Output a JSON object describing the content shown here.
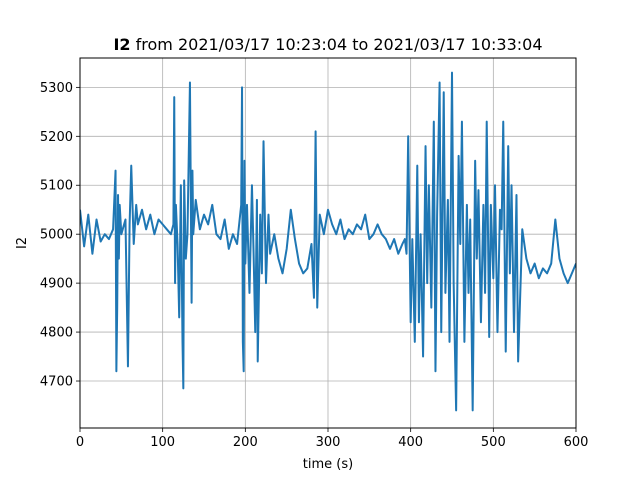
{
  "chart_data": {
    "type": "line",
    "title_bold": "I2",
    "title_rest": " from 2021/03/17 10:23:04 to 2021/03/17 10:33:04",
    "xlabel": "time (s)",
    "ylabel": "I2",
    "xlim": [
      0,
      600
    ],
    "ylim": [
      4604,
      5360
    ],
    "grid": true,
    "x_ticks": [
      0,
      100,
      200,
      300,
      400,
      500,
      600
    ],
    "y_ticks": [
      4700,
      4800,
      4900,
      5000,
      5100,
      5200,
      5300
    ],
    "line_color": "#1f77b4",
    "series": [
      {
        "x": [
          0,
          5,
          10,
          15,
          20,
          25,
          30,
          35,
          40,
          43,
          44,
          45,
          46,
          47,
          48,
          50,
          55,
          58,
          60,
          62,
          65,
          68,
          70,
          75,
          80,
          85,
          90,
          95,
          100,
          105,
          110,
          113,
          114,
          115,
          116,
          118,
          120,
          122,
          124,
          125,
          126,
          128,
          130,
          133,
          135,
          136,
          137,
          140,
          145,
          150,
          155,
          160,
          165,
          170,
          175,
          180,
          185,
          190,
          195,
          196,
          197,
          198,
          199,
          200,
          202,
          205,
          208,
          210,
          212,
          214,
          215,
          218,
          220,
          222,
          225,
          228,
          230,
          235,
          240,
          245,
          250,
          255,
          260,
          265,
          270,
          275,
          280,
          283,
          285,
          287,
          290,
          295,
          300,
          305,
          310,
          315,
          320,
          325,
          330,
          335,
          340,
          345,
          350,
          355,
          360,
          365,
          370,
          375,
          380,
          385,
          390,
          393,
          395,
          397,
          400,
          402,
          405,
          408,
          410,
          412,
          415,
          418,
          420,
          422,
          425,
          428,
          430,
          432,
          435,
          437,
          440,
          442,
          445,
          447,
          450,
          452,
          455,
          458,
          460,
          462,
          465,
          468,
          470,
          472,
          475,
          478,
          480,
          482,
          485,
          488,
          490,
          492,
          495,
          497,
          500,
          502,
          505,
          508,
          510,
          512,
          515,
          518,
          520,
          522,
          525,
          528,
          530,
          535,
          540,
          545,
          550,
          555,
          560,
          565,
          570,
          575,
          580,
          585,
          590,
          595,
          600
        ],
        "y": [
          5050,
          4975,
          5040,
          4960,
          5030,
          4985,
          5000,
          4990,
          5010,
          5130,
          4720,
          4850,
          5080,
          4950,
          5060,
          5000,
          5030,
          4730,
          5020,
          5140,
          4980,
          5060,
          5020,
          5050,
          5010,
          5040,
          5000,
          5030,
          5020,
          5010,
          5000,
          5020,
          5280,
          4900,
          5060,
          4980,
          4830,
          5100,
          4780,
          4685,
          5110,
          4950,
          5000,
          5310,
          4860,
          5130,
          5000,
          5070,
          5010,
          5040,
          5020,
          5060,
          5000,
          4990,
          5030,
          4970,
          5000,
          4980,
          5060,
          5300,
          4780,
          4720,
          5150,
          4940,
          5060,
          4880,
          5100,
          4960,
          4800,
          5070,
          4740,
          5040,
          4920,
          5190,
          4900,
          5040,
          4960,
          5000,
          4950,
          4920,
          4970,
          5050,
          4990,
          4940,
          4920,
          4930,
          4980,
          4870,
          5210,
          4850,
          5040,
          5000,
          5050,
          5020,
          5000,
          5030,
          4990,
          5010,
          5000,
          5020,
          5010,
          5040,
          4990,
          5000,
          5020,
          5000,
          4990,
          4970,
          4990,
          4960,
          4980,
          4990,
          4960,
          5200,
          4820,
          4990,
          4780,
          5140,
          4820,
          5000,
          4750,
          5180,
          4900,
          5100,
          4850,
          5230,
          4720,
          5040,
          5310,
          4800,
          5290,
          4880,
          5070,
          4780,
          5330,
          4900,
          4640,
          5160,
          4980,
          5230,
          4780,
          5060,
          4880,
          5030,
          4640,
          5150,
          4950,
          5090,
          4820,
          5060,
          4880,
          5230,
          4790,
          5060,
          4910,
          5100,
          4800,
          5050,
          5010,
          5230,
          4760,
          5180,
          4920,
          5100,
          4800,
          5080,
          4740,
          5010,
          4950,
          4920,
          4940,
          4910,
          4930,
          4920,
          4940,
          5030,
          4950,
          4920,
          4900,
          4920,
          4940
        ]
      }
    ]
  }
}
